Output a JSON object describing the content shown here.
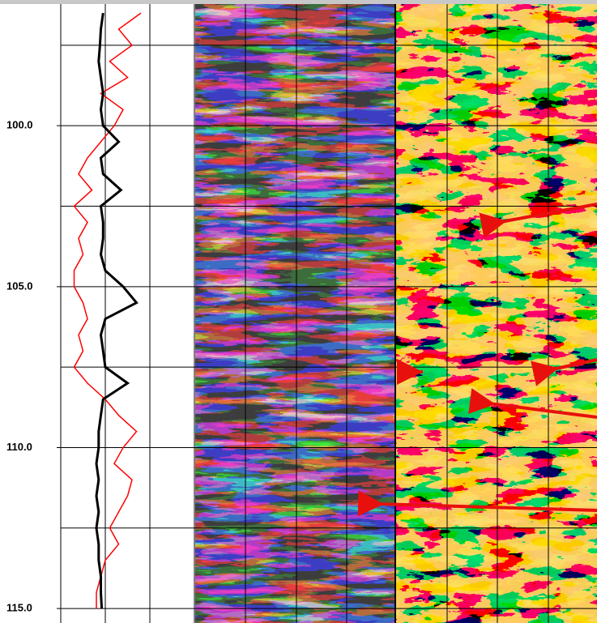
{
  "chart_data": {
    "type": "line",
    "orientation": "vertical",
    "y_inverted": true,
    "y": [
      96.5,
      97,
      97.5,
      98,
      98.5,
      99,
      99.5,
      100,
      100.5,
      101,
      101.5,
      102,
      102.5,
      103,
      103.5,
      104,
      104.5,
      105,
      105.5,
      106,
      106.5,
      107,
      107.5,
      108,
      108.5,
      109,
      109.5,
      110,
      110.5,
      111,
      111.5,
      112,
      112.5,
      113,
      113.5,
      114,
      114.5,
      115
    ],
    "series": [
      {
        "color": "#ff0000",
        "values": [
          1.8,
          1.3,
          1.6,
          1.1,
          1.5,
          0.9,
          1.4,
          1.2,
          0.9,
          0.6,
          0.4,
          0.7,
          0.3,
          0.6,
          0.4,
          0.5,
          0.3,
          0.3,
          0.5,
          0.6,
          0.4,
          0.5,
          0.3,
          0.6,
          1.0,
          1.3,
          1.7,
          1.4,
          1.2,
          1.6,
          1.5,
          1.3,
          1.1,
          1.3,
          1.0,
          0.9,
          0.8,
          0.8
        ]
      },
      {
        "color": "#000000",
        "values": [
          0.95,
          0.9,
          0.88,
          0.85,
          0.9,
          0.95,
          0.9,
          0.95,
          1.3,
          0.9,
          0.95,
          1.35,
          0.9,
          0.95,
          0.95,
          0.9,
          1.0,
          1.4,
          1.7,
          1.0,
          0.9,
          0.95,
          1.0,
          1.5,
          0.95,
          0.9,
          0.85,
          0.85,
          0.8,
          0.85,
          0.8,
          0.85,
          0.8,
          0.85,
          0.85,
          0.9,
          0.9,
          0.92
        ]
      }
    ],
    "xlim": [
      0,
      3
    ],
    "ylim": [
      96.22,
      115.45
    ],
    "yticks": [
      {
        "value": 100,
        "label": "100.0"
      },
      {
        "value": 105,
        "label": "105.0"
      },
      {
        "value": 110,
        "label": "110.0"
      },
      {
        "value": 115,
        "label": "115.0"
      }
    ],
    "minor_yticks": [
      97.5,
      102.5,
      107.5,
      112.5
    ],
    "grid": true
  }
}
